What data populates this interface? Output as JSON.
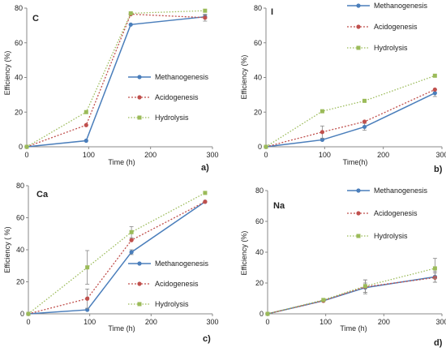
{
  "colors": {
    "Methanogenesis": "#4a7ebb",
    "Acidogenesis": "#c0504d",
    "Hydrolysis": "#9bbb59"
  },
  "chart_data": [
    {
      "type": "line",
      "title": "C",
      "letter": "a)",
      "xlabel": "Time (h)",
      "ylabel": "Efficiency (%)",
      "xlim": [
        0,
        300
      ],
      "ylim": [
        0,
        80
      ],
      "xticks": [
        0,
        100,
        200,
        300
      ],
      "yticks": [
        0,
        20,
        40,
        60,
        80
      ],
      "legend_position": "right-middle",
      "series": [
        {
          "name": "Methanogenesis",
          "x": [
            0,
            96,
            168,
            288
          ],
          "y": [
            0,
            3.5,
            70.5,
            75
          ],
          "err": [
            0,
            0,
            0,
            1
          ]
        },
        {
          "name": "Acidogenesis",
          "x": [
            0,
            96,
            168,
            288
          ],
          "y": [
            0,
            12.5,
            76.5,
            74.5
          ],
          "err": [
            0,
            0,
            0,
            2
          ]
        },
        {
          "name": "Hydrolysis",
          "x": [
            0,
            96,
            168,
            288
          ],
          "y": [
            0,
            20,
            77,
            78.5
          ],
          "err": [
            0,
            0,
            0,
            0
          ]
        }
      ]
    },
    {
      "type": "line",
      "title": "I",
      "letter": "b)",
      "xlabel": "Time(h)",
      "ylabel": "Efficiency (%)",
      "xlim": [
        0,
        300
      ],
      "ylim": [
        0,
        80
      ],
      "xticks": [
        0,
        100,
        200,
        300
      ],
      "yticks": [
        0,
        20,
        40,
        60,
        80
      ],
      "legend_position": "top-right",
      "series": [
        {
          "name": "Methanogenesis",
          "x": [
            0,
            96,
            168,
            288
          ],
          "y": [
            0,
            4,
            11.5,
            31
          ],
          "err": [
            0,
            0,
            2,
            2
          ]
        },
        {
          "name": "Acidogenesis",
          "x": [
            0,
            96,
            168,
            288
          ],
          "y": [
            0,
            8.5,
            14.5,
            33
          ],
          "err": [
            0,
            3.5,
            0,
            0
          ]
        },
        {
          "name": "Hydrolysis",
          "x": [
            0,
            96,
            168,
            288
          ],
          "y": [
            0,
            20.5,
            26.5,
            41
          ],
          "err": [
            0,
            0,
            0,
            0
          ]
        }
      ]
    },
    {
      "type": "line",
      "title": "Ca",
      "letter": "c)",
      "xlabel": "Time (h)",
      "ylabel": "Efficiency ( %)",
      "xlim": [
        0,
        300
      ],
      "ylim": [
        0,
        80
      ],
      "xticks": [
        0,
        100,
        200,
        300
      ],
      "yticks": [
        0,
        20,
        40,
        60,
        80
      ],
      "legend_position": "bottom-right",
      "series": [
        {
          "name": "Methanogenesis",
          "x": [
            0,
            96,
            168,
            288
          ],
          "y": [
            0,
            2.5,
            38.5,
            70
          ],
          "err": [
            0,
            0,
            1.5,
            0
          ]
        },
        {
          "name": "Acidogenesis",
          "x": [
            0,
            96,
            168,
            288
          ],
          "y": [
            0,
            9.5,
            46,
            70
          ],
          "err": [
            0,
            6,
            0,
            0
          ]
        },
        {
          "name": "Hydrolysis",
          "x": [
            0,
            96,
            168,
            288
          ],
          "y": [
            0,
            29,
            51,
            75.5
          ],
          "err": [
            0,
            10.5,
            3.5,
            0
          ]
        }
      ]
    },
    {
      "type": "line",
      "title": "Na",
      "letter": "d)",
      "xlabel": "Time (h)",
      "ylabel": "Efficiency (%)",
      "xlim": [
        0,
        300
      ],
      "ylim": [
        0,
        80
      ],
      "xticks": [
        0,
        100,
        200,
        300
      ],
      "yticks": [
        0,
        20,
        40,
        60,
        80
      ],
      "legend_position": "top-right",
      "series": [
        {
          "name": "Methanogenesis",
          "x": [
            0,
            96,
            168,
            288
          ],
          "y": [
            0,
            8.5,
            17,
            24
          ],
          "err": [
            0,
            0,
            3,
            3.5
          ]
        },
        {
          "name": "Acidogenesis",
          "x": [
            0,
            96,
            168,
            288
          ],
          "y": [
            0,
            8.5,
            17.5,
            23.5
          ],
          "err": [
            0,
            0,
            4.5,
            3
          ]
        },
        {
          "name": "Hydrolysis",
          "x": [
            0,
            96,
            168,
            288
          ],
          "y": [
            0,
            9,
            18,
            29.5
          ],
          "err": [
            0,
            0,
            4,
            6.5
          ]
        }
      ]
    }
  ]
}
